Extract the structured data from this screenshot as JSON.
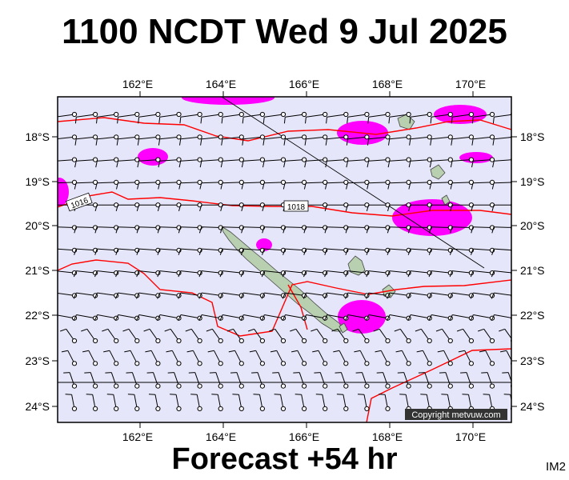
{
  "header": {
    "title": "1100 NCDT Wed 9 Jul 2025"
  },
  "footer": {
    "forecast": "Forecast +54 hr",
    "code": "IM2"
  },
  "map": {
    "copyright": "Copyright metvuw.com",
    "lon_ticks": [
      "162°E",
      "164°E",
      "166°E",
      "168°E",
      "170°E"
    ],
    "lat_ticks": [
      "18°S",
      "19°S",
      "20°S",
      "21°S",
      "22°S",
      "23°S",
      "24°S"
    ],
    "isobar_labels": [
      "1016",
      "1018"
    ],
    "colors": {
      "ocean": "#e6e6fa",
      "rain": "#ff00ff",
      "isobar": "#ff0000",
      "land": "#b8d0b0",
      "barb": "#000000"
    }
  }
}
